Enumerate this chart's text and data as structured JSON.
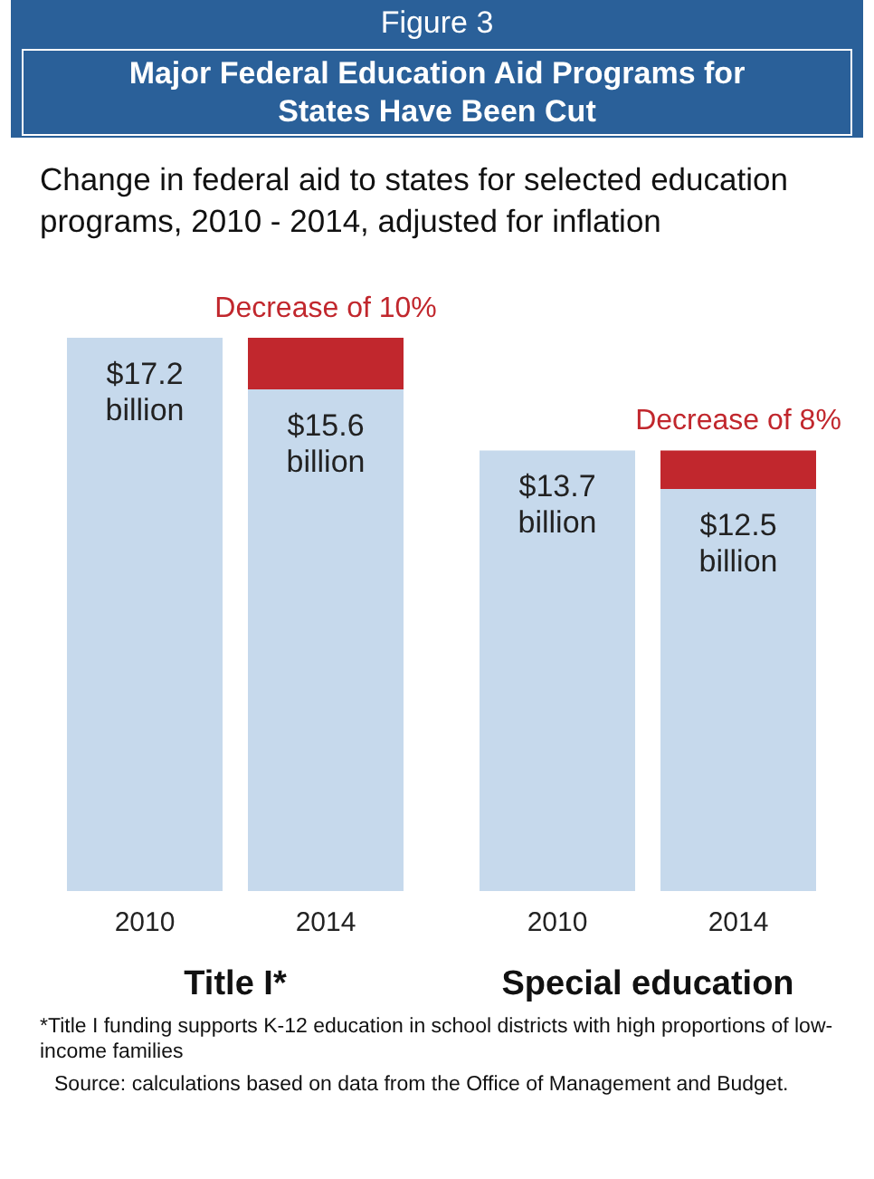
{
  "chart_data": [
    {
      "type": "bar",
      "title": "Major Federal Education Aid Programs for States Have Been Cut",
      "subtitle": "Change in federal aid to states for selected education programs, 2010 - 2014, adjusted for inflation",
      "annotations": [
        "Figure 3",
        "*Title I funding supports K-12 education in school districts with high proportions of low-income families",
        "Source: calculations based on data from the Office of Management and Budget."
      ],
      "stacked": true,
      "categories": [
        "2010",
        "2014"
      ],
      "xlabel": "Title I*",
      "series": [
        {
          "color": "#c6d9ec",
          "values": [
            17200000000,
            15600000000
          ],
          "value_labels": [
            "$17.2\nbillion",
            "$15.6\nbillion"
          ]
        },
        {
          "color": "#c1272d",
          "values": [
            null,
            1600000000
          ],
          "value_labels": [
            null,
            "Decrease of 10%"
          ]
        }
      ]
    },
    {
      "type": "bar",
      "stacked": true,
      "categories": [
        "2010",
        "2014"
      ],
      "xlabel": "Special education",
      "series": [
        {
          "color": "#c6d9ec",
          "values": [
            13700000000,
            12500000000
          ],
          "value_labels": [
            "$13.7\nbillion",
            "$12.5\nbillion"
          ]
        },
        {
          "color": "#c1272d",
          "values": [
            null,
            1200000000
          ],
          "value_labels": [
            null,
            "Decrease of 8%"
          ]
        }
      ]
    }
  ]
}
